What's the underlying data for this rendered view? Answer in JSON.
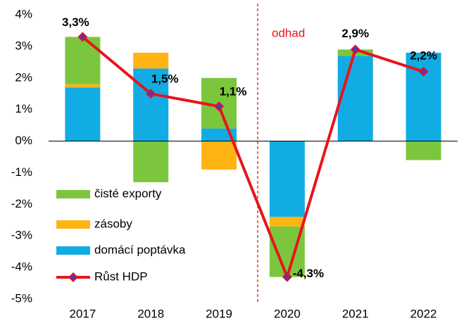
{
  "chart_data": {
    "type": "bar",
    "categories": [
      "2017",
      "2018",
      "2019",
      "2020",
      "2021",
      "2022"
    ],
    "series": [
      {
        "name": "domácí poptávka",
        "color": "#12ace4",
        "values": [
          1.7,
          2.3,
          0.4,
          -2.4,
          2.7,
          2.8
        ]
      },
      {
        "name": "zásoby",
        "color": "#ffb414",
        "values": [
          0.1,
          0.5,
          -0.9,
          -0.3,
          0,
          0
        ]
      },
      {
        "name": "čisté exporty",
        "color": "#7cc63e",
        "values": [
          1.5,
          -1.3,
          1.6,
          -1.6,
          0.2,
          -0.6
        ]
      },
      {
        "name": "Růst HDP",
        "type": "line",
        "color": "#e8141c",
        "marker_color": "#6a2fa0",
        "values": [
          3.3,
          1.5,
          1.1,
          -4.3,
          2.9,
          2.2
        ],
        "value_labels": [
          "3,3%",
          "1,5%",
          "1,1%",
          "-4,3%",
          "2,9%",
          "2,2%"
        ]
      }
    ],
    "annotations": [
      "odhad"
    ],
    "ylim": [
      -5,
      4
    ],
    "yticks": [
      {
        "value": 4,
        "label": "4%"
      },
      {
        "value": 3,
        "label": "3%"
      },
      {
        "value": 2,
        "label": "2%"
      },
      {
        "value": 1,
        "label": "1%"
      },
      {
        "value": 0,
        "label": "0%"
      },
      {
        "value": -1,
        "label": "-1%"
      },
      {
        "value": -2,
        "label": "-2%"
      },
      {
        "value": -3,
        "label": "-3%"
      },
      {
        "value": -4,
        "label": "-4%"
      },
      {
        "value": -5,
        "label": "-5%"
      }
    ],
    "legend": "lower left",
    "grid": false
  }
}
